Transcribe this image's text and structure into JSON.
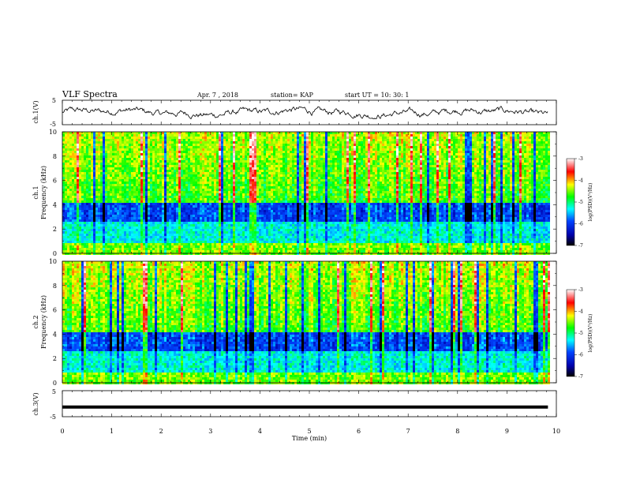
{
  "header": {
    "title": "VLF Spectra",
    "date": "Apr. 7 , 2018",
    "station": "station= KAP",
    "start": "start  UT =   10: 30: 1"
  },
  "chart_data": [
    {
      "type": "line",
      "name": "ch1-waveform",
      "ylabel": "ch.1(V)",
      "ylim": [
        -5,
        5
      ],
      "yticks": [
        "5",
        "-5"
      ],
      "xlim": [
        0,
        10
      ],
      "x_end": 9.83,
      "baseline": 0,
      "amplitude": 2.6
    },
    {
      "type": "heatmap",
      "name": "ch1-spectrogram",
      "ylabel_channel": "ch.1",
      "ylabel": "Frequency (kHz)",
      "ylim": [
        0,
        10
      ],
      "yticks": [
        "0",
        "2",
        "4",
        "6",
        "8",
        "10"
      ],
      "xlim": [
        0,
        10
      ],
      "x_end": 9.83,
      "colorbar": {
        "label": "log(PSD)(V²/Hz)",
        "range": [
          -7,
          -3
        ],
        "ticks": [
          "-3",
          "-4",
          "-5",
          "-6",
          "-7"
        ]
      }
    },
    {
      "type": "heatmap",
      "name": "ch2-spectrogram",
      "ylabel_channel": "ch.2",
      "ylabel": "Frequency (kHz)",
      "ylim": [
        0,
        10
      ],
      "yticks": [
        "0",
        "2",
        "4",
        "6",
        "8",
        "10"
      ],
      "xlim": [
        0,
        10
      ],
      "x_end": 9.83,
      "colorbar": {
        "label": "log(PSD)(V²/Hz)",
        "range": [
          -7,
          -3
        ],
        "ticks": [
          "-3",
          "-4",
          "-5",
          "-6",
          "-7"
        ]
      }
    },
    {
      "type": "line",
      "name": "ch3-waveform",
      "ylabel": "ch.3(V)",
      "ylim": [
        -5,
        5
      ],
      "yticks": [
        "5",
        "-5"
      ],
      "xlim": [
        0,
        10
      ],
      "x_end": 9.83,
      "constant_value": -1.3
    }
  ],
  "xaxis": {
    "label": "Time (min)",
    "ticks": [
      "0",
      "1",
      "2",
      "3",
      "4",
      "5",
      "6",
      "7",
      "8",
      "9",
      "10"
    ]
  }
}
